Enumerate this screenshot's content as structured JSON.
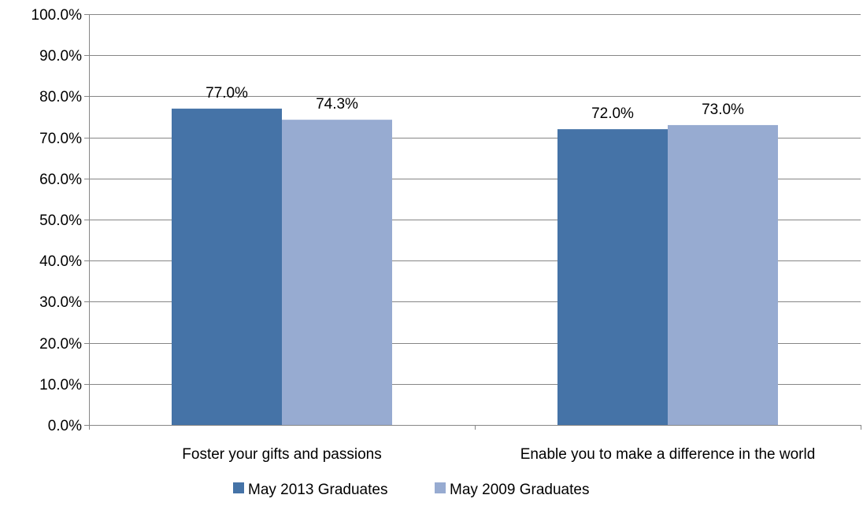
{
  "chart_data": {
    "type": "bar",
    "title": "",
    "xlabel": "",
    "ylabel": "",
    "ylim": [
      0,
      100
    ],
    "y_step": 10,
    "y_tick_format": "percent_1dp",
    "grid": true,
    "legend_position": "bottom",
    "categories": [
      "Foster your gifts and passions",
      "Enable you to make a difference in the world"
    ],
    "series": [
      {
        "name": "May 2013 Graduates",
        "color": "#4573A7",
        "values": [
          77.0,
          72.0
        ]
      },
      {
        "name": "May 2009 Graduates",
        "color": "#97ABD1",
        "values": [
          74.3,
          73.0
        ]
      }
    ],
    "data_labels": [
      [
        "77.0%",
        "72.0%"
      ],
      [
        "74.3%",
        "73.0%"
      ]
    ],
    "y_tick_labels": [
      "0.0%",
      "10.0%",
      "20.0%",
      "30.0%",
      "40.0%",
      "50.0%",
      "60.0%",
      "70.0%",
      "80.0%",
      "90.0%",
      "100.0%"
    ]
  }
}
